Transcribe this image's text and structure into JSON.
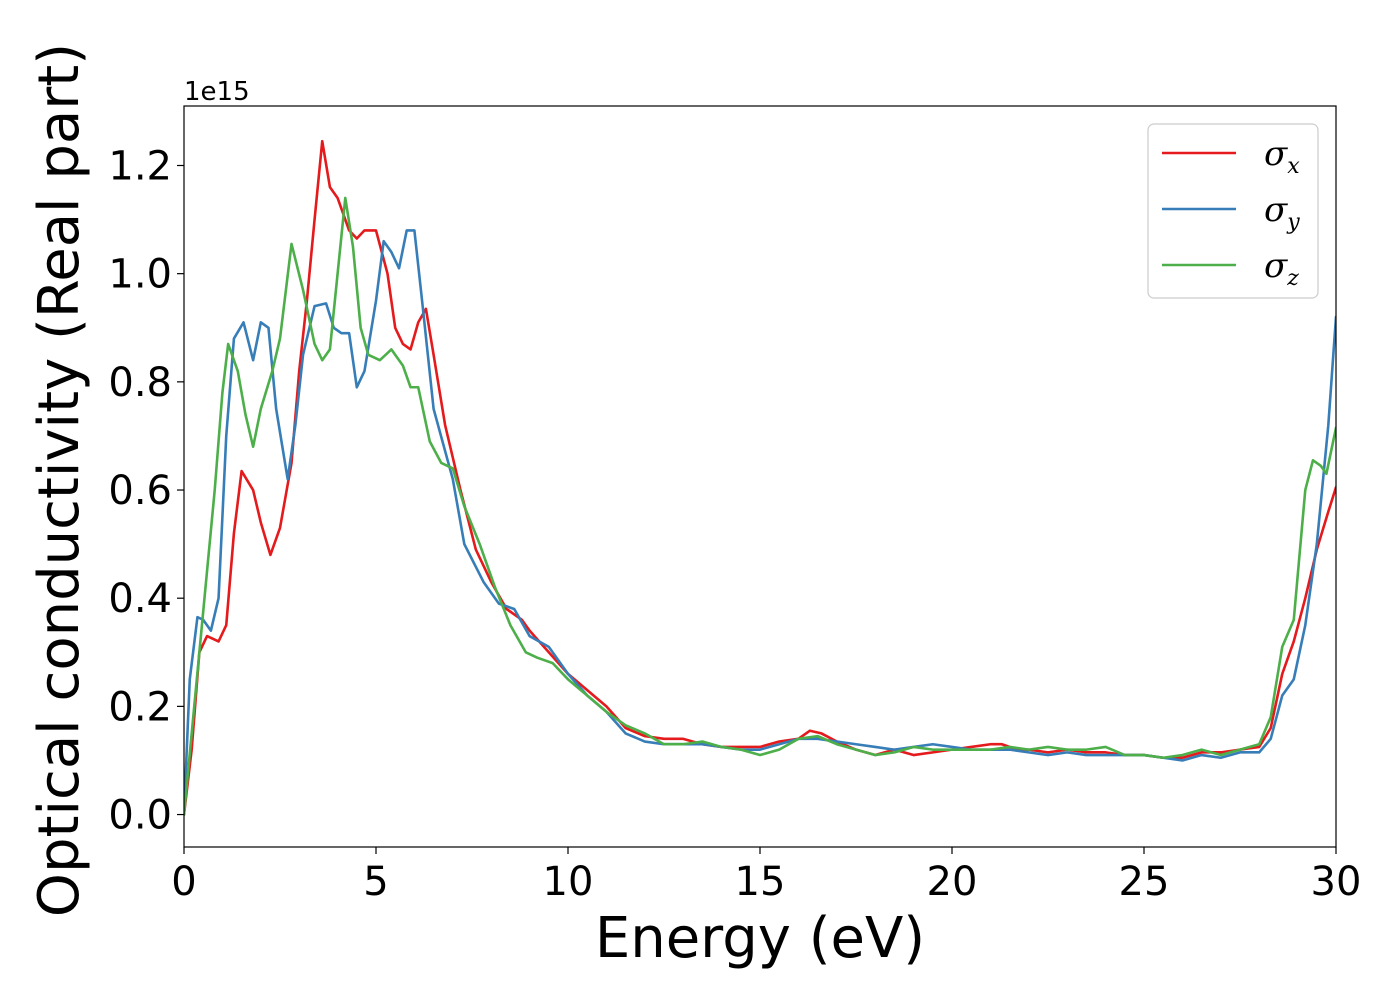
{
  "chart_data": {
    "type": "line",
    "title": "",
    "xlabel": "Energy (eV)",
    "ylabel": "Optical conductivity (Real part)",
    "y_offset_label": "1e15",
    "xlim": [
      0,
      30
    ],
    "ylim": [
      -0.06,
      1.31
    ],
    "xticks": [
      0,
      5,
      10,
      15,
      20,
      25,
      30
    ],
    "yticks": [
      0.0,
      0.2,
      0.4,
      0.6,
      0.8,
      1.0,
      1.2
    ],
    "ytick_labels": [
      "0.0",
      "0.2",
      "0.4",
      "0.6",
      "0.8",
      "1.0",
      "1.2"
    ],
    "grid": false,
    "legend_position": "top-right",
    "series": [
      {
        "name": "σx",
        "symbol": "σ",
        "subscript": "x",
        "color": "#e41a1c",
        "points": [
          [
            0,
            0.0
          ],
          [
            0.2,
            0.12
          ],
          [
            0.4,
            0.3
          ],
          [
            0.6,
            0.33
          ],
          [
            0.9,
            0.32
          ],
          [
            1.1,
            0.35
          ],
          [
            1.3,
            0.52
          ],
          [
            1.5,
            0.635
          ],
          [
            1.8,
            0.6
          ],
          [
            2.0,
            0.54
          ],
          [
            2.25,
            0.48
          ],
          [
            2.5,
            0.53
          ],
          [
            2.8,
            0.65
          ],
          [
            3.0,
            0.82
          ],
          [
            3.2,
            0.95
          ],
          [
            3.4,
            1.1
          ],
          [
            3.6,
            1.245
          ],
          [
            3.8,
            1.16
          ],
          [
            4.0,
            1.14
          ],
          [
            4.3,
            1.08
          ],
          [
            4.5,
            1.065
          ],
          [
            4.7,
            1.08
          ],
          [
            5.0,
            1.08
          ],
          [
            5.3,
            1.0
          ],
          [
            5.5,
            0.9
          ],
          [
            5.7,
            0.87
          ],
          [
            5.9,
            0.86
          ],
          [
            6.1,
            0.91
          ],
          [
            6.3,
            0.935
          ],
          [
            6.5,
            0.85
          ],
          [
            6.8,
            0.72
          ],
          [
            7.2,
            0.6
          ],
          [
            7.6,
            0.49
          ],
          [
            8.0,
            0.43
          ],
          [
            8.4,
            0.38
          ],
          [
            8.8,
            0.36
          ],
          [
            9.0,
            0.34
          ],
          [
            9.5,
            0.3
          ],
          [
            10.0,
            0.26
          ],
          [
            10.5,
            0.23
          ],
          [
            11.0,
            0.2
          ],
          [
            11.5,
            0.16
          ],
          [
            12.0,
            0.145
          ],
          [
            12.5,
            0.14
          ],
          [
            13.0,
            0.14
          ],
          [
            13.5,
            0.13
          ],
          [
            14.0,
            0.125
          ],
          [
            14.5,
            0.125
          ],
          [
            15.0,
            0.125
          ],
          [
            15.5,
            0.135
          ],
          [
            16.0,
            0.14
          ],
          [
            16.3,
            0.155
          ],
          [
            16.6,
            0.15
          ],
          [
            17.0,
            0.135
          ],
          [
            17.5,
            0.12
          ],
          [
            18.0,
            0.11
          ],
          [
            18.5,
            0.12
          ],
          [
            19.0,
            0.11
          ],
          [
            19.5,
            0.115
          ],
          [
            20.0,
            0.12
          ],
          [
            20.5,
            0.125
          ],
          [
            21.0,
            0.13
          ],
          [
            21.3,
            0.13
          ],
          [
            21.7,
            0.12
          ],
          [
            22.0,
            0.12
          ],
          [
            22.5,
            0.115
          ],
          [
            23.0,
            0.12
          ],
          [
            23.5,
            0.115
          ],
          [
            24.0,
            0.115
          ],
          [
            24.5,
            0.11
          ],
          [
            25.0,
            0.11
          ],
          [
            25.5,
            0.105
          ],
          [
            26.0,
            0.105
          ],
          [
            26.5,
            0.115
          ],
          [
            27.0,
            0.115
          ],
          [
            27.5,
            0.12
          ],
          [
            28.0,
            0.125
          ],
          [
            28.3,
            0.16
          ],
          [
            28.6,
            0.26
          ],
          [
            28.9,
            0.32
          ],
          [
            29.2,
            0.4
          ],
          [
            29.5,
            0.49
          ],
          [
            29.8,
            0.56
          ],
          [
            30.0,
            0.605
          ]
        ]
      },
      {
        "name": "σy",
        "symbol": "σ",
        "subscript": "y",
        "color": "#377eb8",
        "points": [
          [
            0,
            0.0
          ],
          [
            0.15,
            0.25
          ],
          [
            0.35,
            0.365
          ],
          [
            0.5,
            0.36
          ],
          [
            0.7,
            0.34
          ],
          [
            0.9,
            0.4
          ],
          [
            1.1,
            0.7
          ],
          [
            1.3,
            0.88
          ],
          [
            1.55,
            0.91
          ],
          [
            1.8,
            0.84
          ],
          [
            2.0,
            0.91
          ],
          [
            2.2,
            0.9
          ],
          [
            2.4,
            0.75
          ],
          [
            2.7,
            0.62
          ],
          [
            2.9,
            0.72
          ],
          [
            3.1,
            0.85
          ],
          [
            3.4,
            0.94
          ],
          [
            3.7,
            0.945
          ],
          [
            3.9,
            0.9
          ],
          [
            4.1,
            0.89
          ],
          [
            4.3,
            0.89
          ],
          [
            4.5,
            0.79
          ],
          [
            4.7,
            0.82
          ],
          [
            5.0,
            0.95
          ],
          [
            5.2,
            1.06
          ],
          [
            5.4,
            1.04
          ],
          [
            5.6,
            1.01
          ],
          [
            5.8,
            1.08
          ],
          [
            6.0,
            1.08
          ],
          [
            6.2,
            0.95
          ],
          [
            6.5,
            0.75
          ],
          [
            7.0,
            0.62
          ],
          [
            7.3,
            0.5
          ],
          [
            7.8,
            0.43
          ],
          [
            8.2,
            0.39
          ],
          [
            8.6,
            0.38
          ],
          [
            9.0,
            0.33
          ],
          [
            9.5,
            0.31
          ],
          [
            10.0,
            0.26
          ],
          [
            10.5,
            0.22
          ],
          [
            11.0,
            0.19
          ],
          [
            11.5,
            0.15
          ],
          [
            12.0,
            0.135
          ],
          [
            12.5,
            0.13
          ],
          [
            13.0,
            0.13
          ],
          [
            13.5,
            0.13
          ],
          [
            14.0,
            0.125
          ],
          [
            14.5,
            0.12
          ],
          [
            15.0,
            0.12
          ],
          [
            15.5,
            0.13
          ],
          [
            16.0,
            0.14
          ],
          [
            16.5,
            0.14
          ],
          [
            17.0,
            0.135
          ],
          [
            17.5,
            0.13
          ],
          [
            18.0,
            0.125
          ],
          [
            18.5,
            0.12
          ],
          [
            19.0,
            0.125
          ],
          [
            19.5,
            0.13
          ],
          [
            20.0,
            0.125
          ],
          [
            20.5,
            0.12
          ],
          [
            21.0,
            0.12
          ],
          [
            21.5,
            0.12
          ],
          [
            22.0,
            0.115
          ],
          [
            22.5,
            0.11
          ],
          [
            23.0,
            0.115
          ],
          [
            23.5,
            0.11
          ],
          [
            24.0,
            0.11
          ],
          [
            24.5,
            0.11
          ],
          [
            25.0,
            0.11
          ],
          [
            25.5,
            0.105
          ],
          [
            26.0,
            0.1
          ],
          [
            26.5,
            0.11
          ],
          [
            27.0,
            0.105
          ],
          [
            27.5,
            0.115
          ],
          [
            28.0,
            0.115
          ],
          [
            28.3,
            0.14
          ],
          [
            28.6,
            0.22
          ],
          [
            28.9,
            0.25
          ],
          [
            29.2,
            0.35
          ],
          [
            29.5,
            0.5
          ],
          [
            29.8,
            0.72
          ],
          [
            30.0,
            0.92
          ]
        ]
      },
      {
        "name": "σz",
        "symbol": "σ",
        "subscript": "z",
        "color": "#4daf4a",
        "points": [
          [
            0,
            0.0
          ],
          [
            0.2,
            0.15
          ],
          [
            0.4,
            0.3
          ],
          [
            0.6,
            0.45
          ],
          [
            0.8,
            0.6
          ],
          [
            1.0,
            0.78
          ],
          [
            1.15,
            0.87
          ],
          [
            1.4,
            0.82
          ],
          [
            1.6,
            0.74
          ],
          [
            1.8,
            0.68
          ],
          [
            2.0,
            0.75
          ],
          [
            2.3,
            0.82
          ],
          [
            2.5,
            0.88
          ],
          [
            2.8,
            1.055
          ],
          [
            3.1,
            0.97
          ],
          [
            3.4,
            0.87
          ],
          [
            3.6,
            0.84
          ],
          [
            3.8,
            0.86
          ],
          [
            4.0,
            1.0
          ],
          [
            4.2,
            1.14
          ],
          [
            4.4,
            1.05
          ],
          [
            4.6,
            0.9
          ],
          [
            4.8,
            0.85
          ],
          [
            5.1,
            0.84
          ],
          [
            5.4,
            0.86
          ],
          [
            5.7,
            0.83
          ],
          [
            5.9,
            0.79
          ],
          [
            6.1,
            0.79
          ],
          [
            6.4,
            0.69
          ],
          [
            6.7,
            0.65
          ],
          [
            7.0,
            0.64
          ],
          [
            7.3,
            0.57
          ],
          [
            7.7,
            0.5
          ],
          [
            8.1,
            0.42
          ],
          [
            8.5,
            0.35
          ],
          [
            8.9,
            0.3
          ],
          [
            9.2,
            0.29
          ],
          [
            9.6,
            0.28
          ],
          [
            10.0,
            0.25
          ],
          [
            10.5,
            0.22
          ],
          [
            11.0,
            0.19
          ],
          [
            11.5,
            0.165
          ],
          [
            12.0,
            0.15
          ],
          [
            12.5,
            0.13
          ],
          [
            13.0,
            0.13
          ],
          [
            13.5,
            0.135
          ],
          [
            14.0,
            0.125
          ],
          [
            14.5,
            0.12
          ],
          [
            15.0,
            0.11
          ],
          [
            15.5,
            0.12
          ],
          [
            16.0,
            0.14
          ],
          [
            16.5,
            0.145
          ],
          [
            17.0,
            0.13
          ],
          [
            17.5,
            0.12
          ],
          [
            18.0,
            0.11
          ],
          [
            18.5,
            0.115
          ],
          [
            19.0,
            0.125
          ],
          [
            19.5,
            0.12
          ],
          [
            20.0,
            0.12
          ],
          [
            20.5,
            0.12
          ],
          [
            21.0,
            0.12
          ],
          [
            21.5,
            0.125
          ],
          [
            22.0,
            0.12
          ],
          [
            22.5,
            0.125
          ],
          [
            23.0,
            0.12
          ],
          [
            23.5,
            0.12
          ],
          [
            24.0,
            0.125
          ],
          [
            24.5,
            0.11
          ],
          [
            25.0,
            0.11
          ],
          [
            25.5,
            0.105
          ],
          [
            26.0,
            0.11
          ],
          [
            26.5,
            0.12
          ],
          [
            27.0,
            0.11
          ],
          [
            27.5,
            0.12
          ],
          [
            28.0,
            0.13
          ],
          [
            28.3,
            0.18
          ],
          [
            28.6,
            0.31
          ],
          [
            28.9,
            0.36
          ],
          [
            29.2,
            0.6
          ],
          [
            29.4,
            0.655
          ],
          [
            29.6,
            0.645
          ],
          [
            29.75,
            0.63
          ],
          [
            30.0,
            0.715
          ]
        ]
      }
    ]
  }
}
